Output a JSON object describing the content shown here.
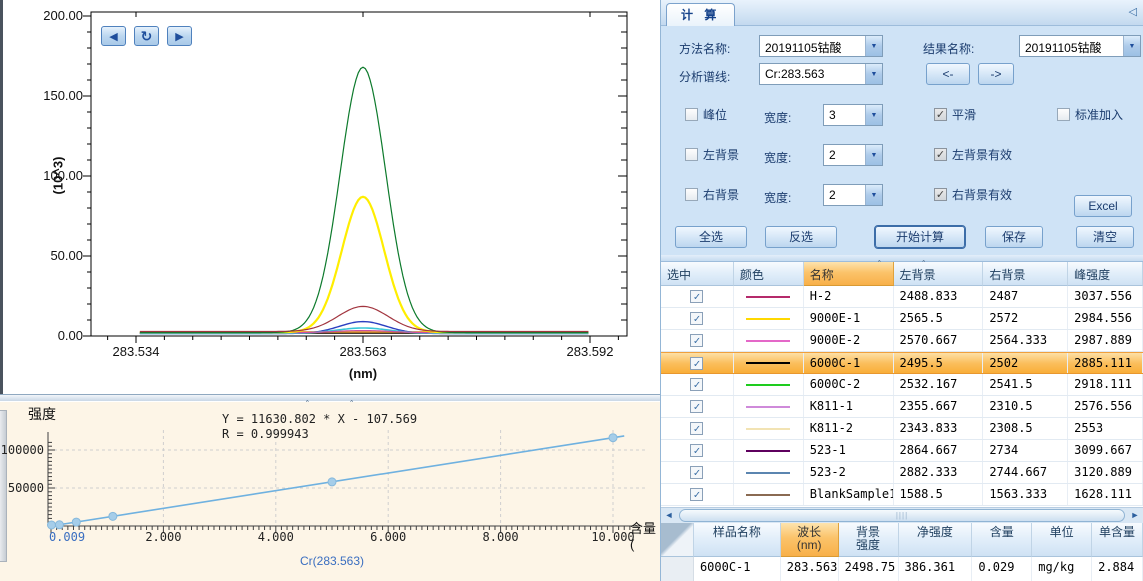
{
  "icons": {
    "check": "✓",
    "dropdown": "▼",
    "scroll_left": "◀",
    "scroll_right": "▶",
    "refresh": "↻",
    "collapse": "◁",
    "hscroll_left": "◄",
    "hscroll_right": "►",
    "thumb_grip": "||||"
  },
  "right_panel": {
    "tab": "计 算",
    "form": {
      "method_label": "方法名称:",
      "method_value": "20191105钴酸",
      "result_label": "结果名称:",
      "result_value": "20191105钴酸",
      "line_label": "分析谱线:",
      "line_value": "Cr:283.563",
      "prev": "<-",
      "next": "->",
      "width_label": "宽度:",
      "width1": "3",
      "width2": "2",
      "width3": "2",
      "peak_cb": "峰位",
      "peak_checked": false,
      "smooth_cb": "平滑",
      "smooth_checked": true,
      "std_cb": "标准加入",
      "std_checked": false,
      "leftbg_cb": "左背景",
      "leftbg_checked": false,
      "leftbg_valid_cb": "左背景有效",
      "leftbg_valid_checked": true,
      "rightbg_cb": "右背景",
      "rightbg_checked": false,
      "rightbg_valid_cb": "右背景有效",
      "rightbg_valid_checked": true,
      "excel": "Excel",
      "select_all": "全选",
      "invert": "反选",
      "calc": "开始计算",
      "save": "保存",
      "clear": "清空"
    },
    "results_table": {
      "headers": [
        "选中",
        "颜色",
        "名称",
        "左背景",
        "右背景",
        "峰强度"
      ],
      "sorted_header": "名称",
      "rows": [
        {
          "checked": true,
          "color": "#b52a6b",
          "name": "H-2",
          "left": "2488.833",
          "right": "2487",
          "peak": "3037.556",
          "selected": false
        },
        {
          "checked": true,
          "color": "#ffd800",
          "name": "9000E-1",
          "left": "2565.5",
          "right": "2572",
          "peak": "2984.556",
          "selected": false
        },
        {
          "checked": true,
          "color": "#e468c8",
          "name": "9000E-2",
          "left": "2570.667",
          "right": "2564.333",
          "peak": "2987.889",
          "selected": false
        },
        {
          "checked": true,
          "color": "#000000",
          "name": "6000C-1",
          "left": "2495.5",
          "right": "2502",
          "peak": "2885.111",
          "selected": true
        },
        {
          "checked": true,
          "color": "#1ecc1e",
          "name": "6000C-2",
          "left": "2532.167",
          "right": "2541.5",
          "peak": "2918.111",
          "selected": false
        },
        {
          "checked": true,
          "color": "#cf8ada",
          "name": "K811-1",
          "left": "2355.667",
          "right": "2310.5",
          "peak": "2576.556",
          "selected": false
        },
        {
          "checked": true,
          "color": "#f2e3b3",
          "name": "K811-2",
          "left": "2343.833",
          "right": "2308.5",
          "peak": "2553",
          "selected": false
        },
        {
          "checked": true,
          "color": "#5e005e",
          "name": "523-1",
          "left": "2864.667",
          "right": "2734",
          "peak": "3099.667",
          "selected": false
        },
        {
          "checked": true,
          "color": "#5b85b0",
          "name": "523-2",
          "left": "2882.333",
          "right": "2744.667",
          "peak": "3120.889",
          "selected": false
        },
        {
          "checked": true,
          "color": "#8a6a52",
          "name": "BlankSample1",
          "left": "1588.5",
          "right": "1563.333",
          "peak": "1628.111",
          "selected": false
        }
      ]
    },
    "detail_table": {
      "headers": [
        "样品名称",
        "波长\n(nm)",
        "背景\n强度",
        "净强度",
        "含量",
        "单位",
        "单含量"
      ],
      "sorted_index": 1,
      "rows": [
        [
          "6000C-1",
          "283.563",
          "2498.75",
          "386.361",
          "0.029",
          "mg/kg",
          "2.884"
        ]
      ]
    }
  },
  "chart_data": [
    {
      "type": "line",
      "name": "overlaid-spectra",
      "title": "",
      "xlabel": "(nm)",
      "ylabel": "(10^3)",
      "x_tick_labels": [
        "283.534",
        "283.563",
        "283.592"
      ],
      "x_tick_values": [
        283.534,
        283.563,
        283.592
      ],
      "y_tick_labels": [
        "0.00",
        "50.00",
        "100.00",
        "150.00",
        "200.00"
      ],
      "y_tick_values": [
        0,
        50,
        100,
        150,
        200
      ],
      "xlim": [
        283.5283,
        283.5967
      ],
      "ylim": [
        0,
        200
      ],
      "data_x_range": [
        283.5345,
        283.592
      ],
      "peak_center": 283.563,
      "grid": false,
      "series": [
        {
          "name": "brown-flat",
          "color": "#8a6a52",
          "base": 1.6,
          "peak": 1.6,
          "sigma": 0.003,
          "width": 1.2
        },
        {
          "name": "purple-flat",
          "color": "#5e005e",
          "base": 1.95,
          "peak": 1.95,
          "sigma": 0.003,
          "width": 1.2
        },
        {
          "name": "black-flat",
          "color": "#1a1a1a",
          "base": 1.85,
          "peak": 1.85,
          "sigma": 0.003,
          "width": 1.2
        },
        {
          "name": "orange-flat",
          "color": "#e89a2a",
          "base": 2.55,
          "peak": 2.55,
          "sigma": 0.003,
          "width": 1.6
        },
        {
          "name": "blue-peak",
          "color": "#2a3fc0",
          "base": 1.55,
          "peak": 9,
          "sigma": 0.003,
          "width": 1.4
        },
        {
          "name": "cyan-peak",
          "color": "#39c6d8",
          "base": 1.7,
          "peak": 5,
          "sigma": 0.0033,
          "width": 1.6
        },
        {
          "name": "magenta-peak",
          "color": "#cc4f9e",
          "base": 2.0,
          "peak": 3.4,
          "sigma": 0.0036,
          "width": 1.2
        },
        {
          "name": "yellow-peak",
          "color": "#ffee00",
          "base": 2.35,
          "peak": 87,
          "sigma": 0.0027,
          "width": 2.2
        },
        {
          "name": "green-peak",
          "color": "#0d7a2c",
          "base": 2.15,
          "peak": 168,
          "sigma": 0.0029,
          "width": 1.2
        },
        {
          "name": "darkred-peak",
          "color": "#a2353f",
          "base": 2.8,
          "peak": 18.5,
          "sigma": 0.0032,
          "width": 1.2
        }
      ]
    },
    {
      "type": "scatter",
      "name": "calibration-curve",
      "ylabel": "强度",
      "xlabel_partial": "含量(",
      "series_label": "Cr(283.563)",
      "equation": "Y = 11630.802 * X - 107.569",
      "correlation": "R = 0.999943",
      "slope": 11630.802,
      "intercept": -107.569,
      "x_tick_labels": [
        "0.009",
        "2.000",
        "4.000",
        "6.000",
        "8.000",
        "10.000"
      ],
      "x_tick_values": [
        0.009,
        2,
        4,
        6,
        8,
        10
      ],
      "y_tick_labels": [
        "50000",
        "100000"
      ],
      "y_tick_values": [
        50000,
        100000
      ],
      "xlim": [
        0,
        10.4
      ],
      "ylim": [
        0,
        125000
      ],
      "grid": "dashed",
      "points_x": [
        0.009,
        0.15,
        0.45,
        1.1,
        5.0,
        10.0
      ],
      "points_y": [
        0,
        1637,
        5126,
        12686,
        58046,
        116200
      ],
      "line_color": "#6fb1e0",
      "point_color": "#a5cde9"
    }
  ]
}
